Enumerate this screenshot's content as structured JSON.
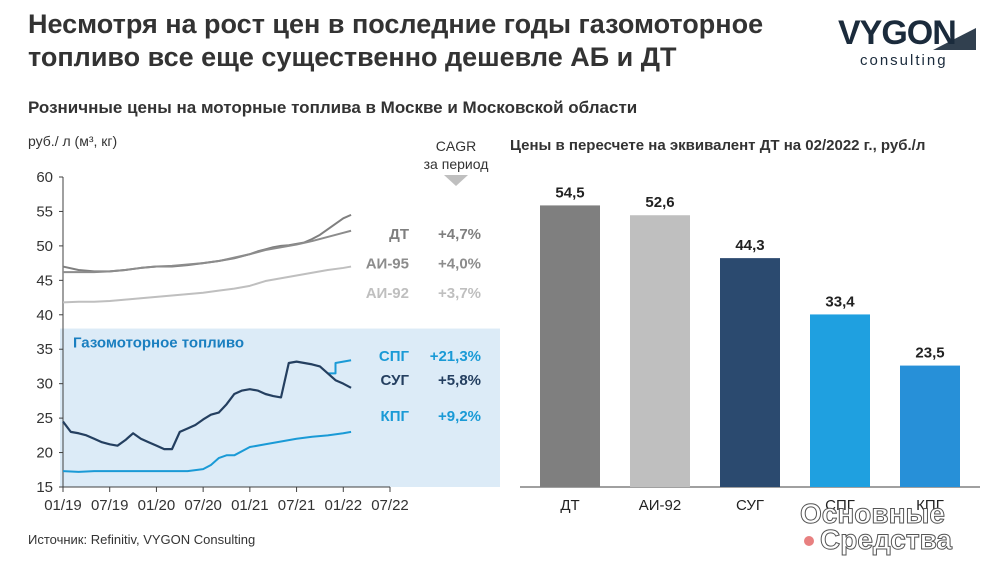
{
  "title": "Несмотря на рост цен в последние годы газомоторное топливо все еще существенно дешевле АБ и ДТ",
  "logo": {
    "name": "VYGON",
    "sub": "consulting"
  },
  "subtitle": "Розничные цены на моторные топлива в Москве и Московской области",
  "unit_label": "руб./ л (м³, кг)",
  "cagr_header": [
    "CAGR",
    "за период"
  ],
  "source": "Источник: Refinitiv, VYGON Consulting",
  "watermark": [
    "Основные",
    "Средства"
  ],
  "colors": {
    "dt": "#7f7f7f",
    "ai95": "#8c8c8c",
    "ai92": "#bfbfbf",
    "spg": "#1a9ad6",
    "sug": "#243f60",
    "kpg": "#1a9ad6",
    "band": "#dcebf7",
    "bar_dt": "#7f7f7f",
    "bar_ai92": "#bfbfbf",
    "bar_sug": "#2b4a6f",
    "bar_spg": "#1fa0e0",
    "bar_kpg": "#2790d8"
  },
  "chart_data": [
    {
      "type": "line",
      "title": "",
      "ylim": [
        15,
        60
      ],
      "yticks": [
        15,
        20,
        25,
        30,
        35,
        40,
        45,
        50,
        55,
        60
      ],
      "xticks": [
        "01/19",
        "07/19",
        "01/20",
        "07/20",
        "01/21",
        "07/21",
        "01/22",
        "07/22"
      ],
      "xlim": [
        0,
        42
      ],
      "band_label": "Газомоторное топливо",
      "band_ylim": [
        15,
        38
      ],
      "series": [
        {
          "name": "ДТ",
          "key": "dt",
          "cagr": "+4,7%",
          "x": [
            0,
            2,
            4,
            6,
            8,
            10,
            12,
            14,
            16,
            18,
            20,
            22,
            24,
            25,
            26,
            27,
            28,
            29,
            30,
            31,
            32,
            33,
            34,
            35,
            36,
            37
          ],
          "y": [
            47.0,
            46.5,
            46.3,
            46.3,
            46.5,
            46.8,
            47.0,
            47.0,
            47.2,
            47.5,
            47.8,
            48.2,
            48.8,
            49.2,
            49.5,
            49.8,
            50.0,
            50.1,
            50.3,
            50.5,
            51.0,
            51.6,
            52.4,
            53.2,
            54.0,
            54.5
          ]
        },
        {
          "name": "АИ-95",
          "key": "ai95",
          "cagr": "+4,0%",
          "x": [
            0,
            2,
            4,
            6,
            8,
            10,
            12,
            14,
            16,
            18,
            20,
            22,
            24,
            26,
            28,
            30,
            32,
            34,
            36,
            37
          ],
          "y": [
            46.2,
            46.2,
            46.2,
            46.3,
            46.5,
            46.8,
            47.0,
            47.1,
            47.3,
            47.5,
            47.8,
            48.3,
            48.8,
            49.4,
            49.8,
            50.2,
            50.7,
            51.3,
            51.9,
            52.2
          ]
        },
        {
          "name": "АИ-92",
          "key": "ai92",
          "cagr": "+3,7%",
          "x": [
            0,
            2,
            4,
            6,
            8,
            10,
            12,
            14,
            16,
            18,
            20,
            22,
            24,
            26,
            28,
            30,
            32,
            34,
            36,
            37
          ],
          "y": [
            41.8,
            41.9,
            41.9,
            42.0,
            42.2,
            42.4,
            42.6,
            42.8,
            43.0,
            43.2,
            43.5,
            43.8,
            44.2,
            44.9,
            45.3,
            45.7,
            46.1,
            46.5,
            46.8,
            47.0
          ]
        },
        {
          "name": "СПГ",
          "key": "spg",
          "cagr": "+21,3%",
          "x": [
            34,
            35,
            35,
            36,
            37
          ],
          "y": [
            31.5,
            31.5,
            33.0,
            33.2,
            33.4
          ]
        },
        {
          "name": "СУГ",
          "key": "sug",
          "cagr": "+5,8%",
          "x": [
            0,
            1,
            2,
            3,
            4,
            5,
            6,
            7,
            8,
            9,
            10,
            11,
            12,
            13,
            14,
            15,
            16,
            17,
            18,
            19,
            20,
            21,
            22,
            23,
            24,
            25,
            26,
            27,
            28,
            29,
            30,
            31,
            32,
            33,
            34,
            35,
            36,
            37
          ],
          "y": [
            24.5,
            23.0,
            22.8,
            22.5,
            22.0,
            21.5,
            21.2,
            21.0,
            21.8,
            22.8,
            22.0,
            21.5,
            21.0,
            20.5,
            20.5,
            23.0,
            23.5,
            24.0,
            24.8,
            25.5,
            25.8,
            27.0,
            28.5,
            29.0,
            29.2,
            29.0,
            28.5,
            28.2,
            28.0,
            33.0,
            33.2,
            33.0,
            32.8,
            32.5,
            31.5,
            30.5,
            30.0,
            29.4
          ]
        },
        {
          "name": "КПГ",
          "key": "kpg",
          "cagr": "+9,2%",
          "x": [
            0,
            2,
            4,
            6,
            8,
            10,
            12,
            14,
            16,
            18,
            19,
            20,
            21,
            22,
            24,
            26,
            28,
            30,
            32,
            34,
            36,
            37
          ],
          "y": [
            17.3,
            17.2,
            17.3,
            17.3,
            17.3,
            17.3,
            17.3,
            17.3,
            17.3,
            17.6,
            18.2,
            19.2,
            19.6,
            19.6,
            20.8,
            21.2,
            21.6,
            22.0,
            22.3,
            22.5,
            22.8,
            23.0
          ]
        }
      ]
    },
    {
      "type": "bar",
      "title": "Цены в пересчете на эквивалент ДТ на 02/2022 г., руб./л",
      "categories": [
        "ДТ",
        "АИ-92",
        "СУГ",
        "СПГ",
        "КПГ"
      ],
      "values": [
        54.5,
        52.6,
        44.3,
        33.4,
        23.5
      ],
      "value_labels": [
        "54,5",
        "52,6",
        "44,3",
        "33,4",
        "23,5"
      ],
      "ylim": [
        0,
        60
      ]
    }
  ]
}
